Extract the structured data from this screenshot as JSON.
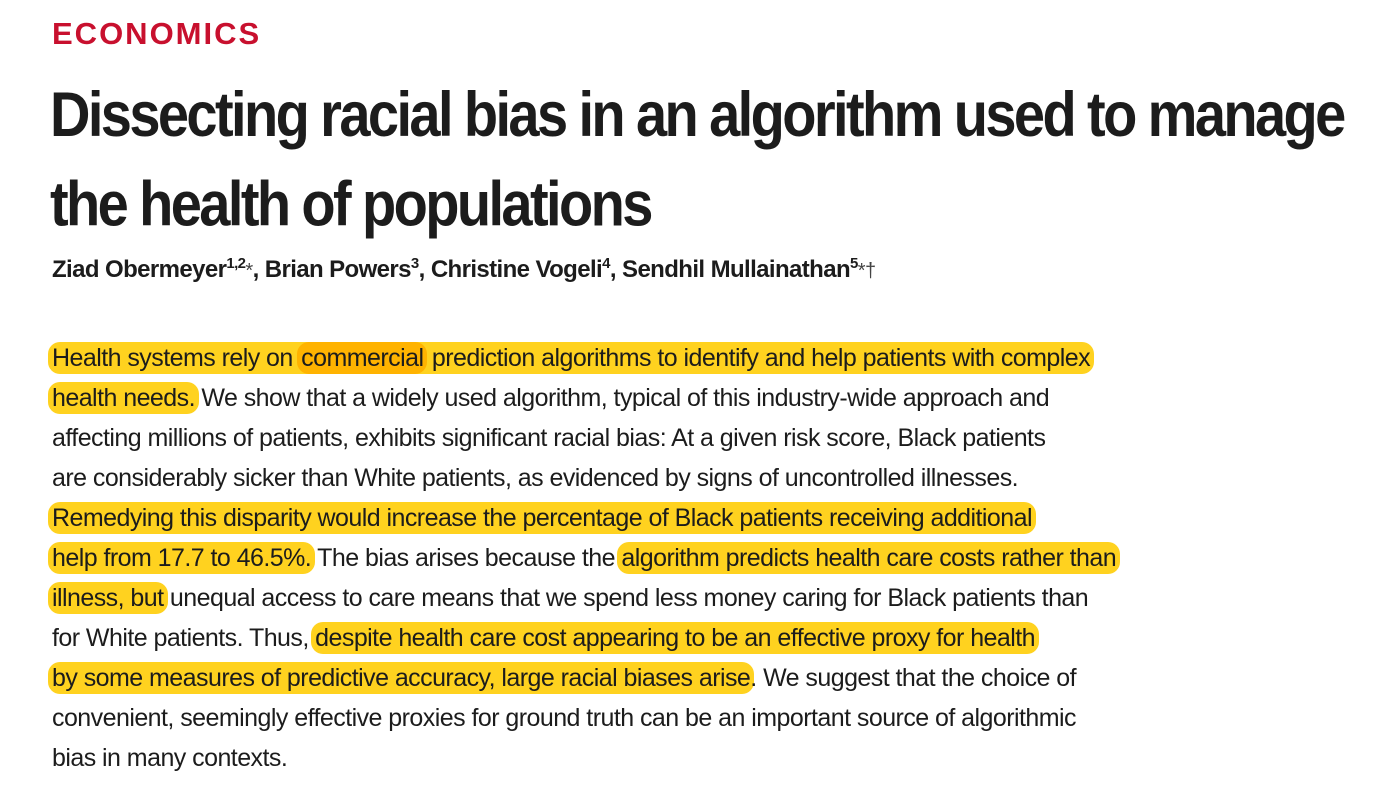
{
  "section": "ECONOMICS",
  "title_lines": [
    "Dissecting racial bias in an algorithm used to manage",
    "the health of populations"
  ],
  "authors": [
    {
      "name": "Ziad Obermeyer",
      "sup": "1,2",
      "mark": "*"
    },
    {
      "name": "Brian Powers",
      "sup": "3",
      "mark": ""
    },
    {
      "name": "Christine Vogeli",
      "sup": "4",
      "mark": ""
    },
    {
      "name": "Sendhil Mullainathan",
      "sup": "5",
      "mark": "*†"
    }
  ],
  "separator": ", ",
  "abstract": {
    "l1_a": "Health systems rely on ",
    "l1_b": "commercial",
    "l1_c": " prediction algorithms to identify and help patients with complex",
    "l2_a": "health needs.",
    "l2_b": " We show that a widely used algorithm, typical of this industry-wide approach and",
    "l3": "affecting millions of patients, exhibits significant racial bias: At a given risk score, Black patients",
    "l4": "are considerably sicker than White patients, as evidenced by signs of uncontrolled illnesses.",
    "l5": "Remedying this disparity would increase the percentage of Black patients receiving additional",
    "l6_a": "help from 17.7 to 46.5%.",
    "l6_b": " The bias arises because the ",
    "l6_c": "algorithm predicts health care costs rather than",
    "l7_a": "illness, but",
    "l7_b": " unequal access to care means that we spend less money caring for Black patients than",
    "l8_a": "for White patients. Thus, ",
    "l8_b": "despite health care cost appearing to be an effective proxy for health",
    "l9_a": "by some measures of predictive accuracy, large racial biases arise",
    "l9_b": ". We suggest that the choice of",
    "l10": "convenient, seemingly effective proxies for ground truth can be an important source of algorithmic",
    "l11": "bias in many contexts."
  },
  "colors": {
    "section": "#c8102e",
    "highlight": "#ffd21f",
    "highlight_strong": "#ffb300"
  }
}
